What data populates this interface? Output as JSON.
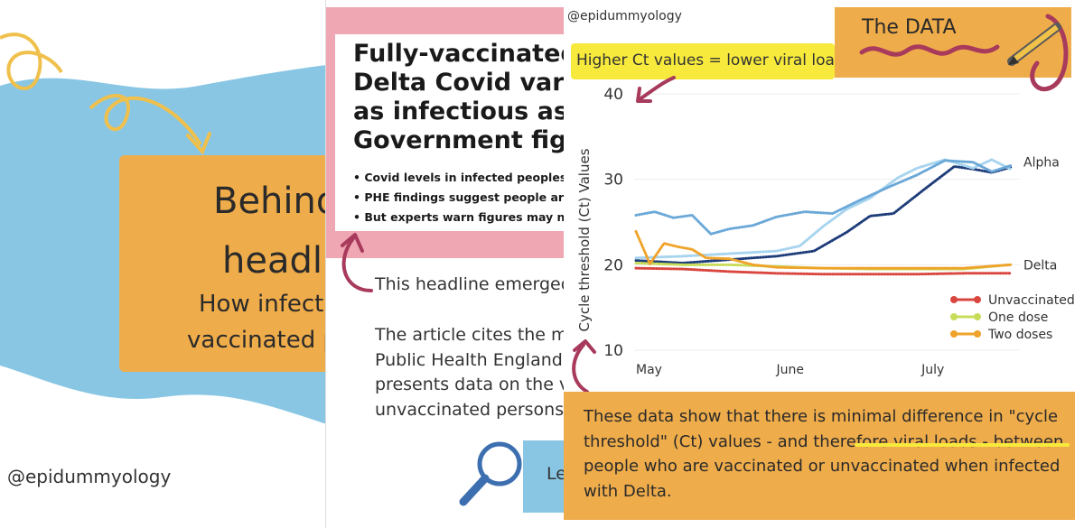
{
  "left_card": {
    "title_line1": "Behind",
    "title_line2": "headli",
    "subtitle_line1": "How infect",
    "subtitle_line2": "vaccinated p",
    "handle": "@epidummyology",
    "colors": {
      "blue": "#88c6e4",
      "orange": "#efac4a"
    }
  },
  "middle_card": {
    "headline_lines": [
      "Fully-vaccinated p",
      "Delta Covid varian",
      "as infectious as th",
      "Government figur"
    ],
    "bullets": [
      "Covid levels in infected peoples' sa",
      "PHE findings suggest people are jus",
      "But experts warn figures may not re"
    ],
    "intro": "This headline emerged i",
    "body_lines": [
      "The article cites the mo",
      "Public Health England o",
      "presents data on the vi",
      "unvaccinated persons w"
    ],
    "bottom_label": "Le",
    "colors": {
      "pink": "#efa7b4",
      "blue": "#88c6e4"
    }
  },
  "right_card": {
    "handle": "@epidummyology",
    "highlight_note": "Higher Ct values = lower viral load",
    "data_title": "The DATA",
    "conclusion": "These data show that there is minimal difference in \"cycle threshold\" (Ct) values - and therefore viral loads - between people who are vaccinated or unvaccinated when infected with Delta.",
    "colors": {
      "orange": "#efac4a",
      "yellow": "#f7ea3c",
      "arrow": "#a83a5c"
    }
  },
  "chart_data": {
    "type": "line",
    "title": "",
    "xlabel": "",
    "ylabel": "Cycle threshold (Ct) Values",
    "yticks": [
      10,
      20,
      30,
      40
    ],
    "ylim": [
      10,
      40
    ],
    "x_tick_labels": [
      "May",
      "June",
      "July"
    ],
    "x_tick_positions": [
      0,
      30,
      61
    ],
    "xlim": [
      0,
      82
    ],
    "group_labels": [
      {
        "text": "Alpha",
        "y": 32
      },
      {
        "text": "Delta",
        "y": 20
      }
    ],
    "legend": [
      {
        "name": "Unvaccinated",
        "color": "#d9463f"
      },
      {
        "name": "One dose",
        "color": "#c8dc5a"
      },
      {
        "name": "Two doses",
        "color": "#efa32a"
      }
    ],
    "series": [
      {
        "name": "Alpha - Unvaccinated",
        "color": "#1f3d7a",
        "x": [
          0,
          10,
          20,
          30,
          38,
          45,
          50,
          55,
          62,
          68,
          72,
          76,
          80
        ],
        "y": [
          20.5,
          20.2,
          20.6,
          21.0,
          21.6,
          23.8,
          25.7,
          26.0,
          29.0,
          31.5,
          31.2,
          30.8,
          31.4
        ]
      },
      {
        "name": "Alpha - One dose",
        "color": "#a7d4ee",
        "x": [
          0,
          10,
          20,
          30,
          35,
          40,
          45,
          50,
          56,
          60,
          66,
          72,
          76,
          80
        ],
        "y": [
          20.8,
          21.0,
          21.3,
          21.6,
          22.2,
          24.5,
          26.5,
          27.8,
          30.2,
          31.3,
          32.3,
          31.3,
          32.3,
          31.2
        ]
      },
      {
        "name": "Alpha - Two doses",
        "color": "#6aa8d8",
        "x": [
          0,
          4,
          8,
          12,
          16,
          20,
          25,
          30,
          36,
          42,
          48,
          54,
          60,
          66,
          72,
          76,
          80
        ],
        "y": [
          25.8,
          26.2,
          25.5,
          25.8,
          23.6,
          24.2,
          24.6,
          25.6,
          26.2,
          26.0,
          27.6,
          29.1,
          30.5,
          32.2,
          32.0,
          30.9,
          31.6
        ]
      },
      {
        "name": "Delta - Unvaccinated",
        "color": "#d9463f",
        "x": [
          0,
          10,
          20,
          30,
          40,
          50,
          60,
          70,
          80
        ],
        "y": [
          19.6,
          19.5,
          19.2,
          19.0,
          18.9,
          18.9,
          18.9,
          19.0,
          19.0
        ]
      },
      {
        "name": "Delta - One dose",
        "color": "#c8dc5a",
        "x": [
          0,
          10,
          20,
          30,
          40,
          50,
          60,
          70,
          80
        ],
        "y": [
          20.2,
          20.0,
          20.0,
          19.8,
          19.6,
          19.5,
          19.5,
          19.5,
          20.0
        ]
      },
      {
        "name": "Delta - Two doses",
        "color": "#efa32a",
        "x": [
          0,
          3,
          6,
          9,
          12,
          15,
          20,
          25,
          30,
          40,
          50,
          60,
          70,
          80
        ],
        "y": [
          23.9,
          20.1,
          22.5,
          22.1,
          21.8,
          20.8,
          20.7,
          20.0,
          19.7,
          19.6,
          19.6,
          19.6,
          19.6,
          20.0
        ]
      }
    ]
  }
}
